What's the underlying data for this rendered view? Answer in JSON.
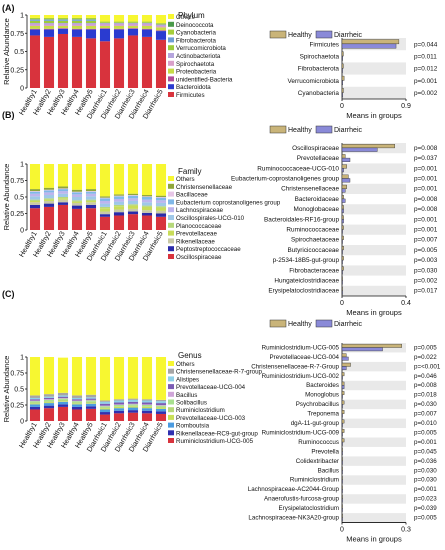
{
  "colors": {
    "Others": "#f7f731",
    "Deinococcota": "#4a9a4a",
    "Cyanobacteria": "#a6cf3c",
    "Fibrobacterota": "#6fa0d6",
    "Verrucomicrobiota": "#9ccc3c",
    "Actinobacteriota": "#b5a5dd",
    "Spirochaetota": "#d9a0c9",
    "Proteobacteria": "#c7dc48",
    "unidentified-Bacteria": "#b04e9a",
    "Bacteroidota": "#2a3bd0",
    "Firmicutes": "#d8333d",
    "Christensenellaceae": "#8fa63a",
    "Bacillaceae": "#e7c6e7",
    "Eubacterium coprostanoligenes group": "#80b8e8",
    "Lachnospiraceae": "#bdb5ee",
    "Oscillospirales-UCG-010": "#9fc8e8",
    "Planococcaceae": "#b6d87a",
    "Prevotellaceae": "#c9dc58",
    "Rikenellaceae": "#c9c9a6",
    "Peptostreptococcaceae": "#2a2aaa",
    "Oscillospiraceae": "#d8333d",
    "Christensenellaceae-R-7-group": "#a6a6a6",
    "Alistipes": "#8ed0e8",
    "Prevotellaceae-UCG-004": "#7b5cb4",
    "Bacillus": "#cfa5d8",
    "Solibacillus": "#a8e090",
    "Ruminiclostridium": "#b6d87a",
    "Prevotellaceae-UCG-003": "#c9e058",
    "Romboutsia": "#4b9be0",
    "Rikenellaceae-RC9-gut-group": "#3030b0",
    "Ruminiclostridium-UCG-005": "#d8333d",
    "healthy": "#c9b479",
    "diarrheic": "#8a8ad8"
  },
  "chart_data": [
    {
      "type": "bar",
      "panel": "(A)",
      "stacked": true,
      "legend_title": "Phylum",
      "ylabel": "Relative Abundance",
      "ylim": [
        0,
        1
      ],
      "yticks": [
        "0",
        "0.25",
        "0.5",
        "0.75",
        "1"
      ],
      "categories": [
        "Healthy1",
        "Healthy2",
        "Healthy3",
        "Healthy4",
        "Healthy5",
        "Diarrheic1",
        "Diarrheic2",
        "Diarrheic3",
        "Diarrheic4",
        "Diarrheic5"
      ],
      "series": [
        {
          "name": "Firmicutes",
          "values": [
            0.72,
            0.7,
            0.74,
            0.7,
            0.68,
            0.64,
            0.68,
            0.72,
            0.7,
            0.66
          ]
        },
        {
          "name": "Bacteroidota",
          "values": [
            0.08,
            0.1,
            0.07,
            0.1,
            0.12,
            0.17,
            0.12,
            0.09,
            0.1,
            0.12
          ]
        },
        {
          "name": "unidentified-Bacteria",
          "values": [
            0.01,
            0.01,
            0.01,
            0.01,
            0.01,
            0.01,
            0.01,
            0.01,
            0.01,
            0.01
          ]
        },
        {
          "name": "Proteobacteria",
          "values": [
            0.04,
            0.04,
            0.03,
            0.04,
            0.04,
            0.03,
            0.04,
            0.03,
            0.04,
            0.04
          ]
        },
        {
          "name": "Spirochaetota",
          "values": [
            0.02,
            0.02,
            0.02,
            0.02,
            0.02,
            0.02,
            0.02,
            0.02,
            0.02,
            0.02
          ]
        },
        {
          "name": "Actinobacteriota",
          "values": [
            0.02,
            0.02,
            0.02,
            0.02,
            0.02,
            0.02,
            0.02,
            0.02,
            0.02,
            0.02
          ]
        },
        {
          "name": "Verrucomicrobiota",
          "values": [
            0.03,
            0.03,
            0.03,
            0.03,
            0.03,
            0.01,
            0.01,
            0.01,
            0.01,
            0.01
          ]
        },
        {
          "name": "Fibrobacterota",
          "values": [
            0.02,
            0.02,
            0.02,
            0.02,
            0.02,
            0.0,
            0.0,
            0.0,
            0.0,
            0.0
          ]
        },
        {
          "name": "Cyanobacteria",
          "values": [
            0.02,
            0.02,
            0.02,
            0.02,
            0.02,
            0.01,
            0.01,
            0.01,
            0.01,
            0.01
          ]
        },
        {
          "name": "Deinococcota",
          "values": [
            0.0,
            0.0,
            0.0,
            0.0,
            0.0,
            0.0,
            0.0,
            0.0,
            0.0,
            0.0
          ]
        },
        {
          "name": "Others",
          "values": [
            0.04,
            0.04,
            0.04,
            0.04,
            0.04,
            0.09,
            0.09,
            0.09,
            0.09,
            0.11
          ]
        }
      ]
    },
    {
      "type": "bar",
      "panel": "(B)",
      "stacked": true,
      "legend_title": "Family",
      "ylabel": "Relative Abundance",
      "ylim": [
        0,
        1
      ],
      "yticks": [
        "0",
        "0.25",
        "0.5",
        "0.75",
        "1"
      ],
      "categories": [
        "Healthy1",
        "Healthy2",
        "Healthy3",
        "Healthy4",
        "Healthy5",
        "Diarrheic1",
        "Diarrheic2",
        "Diarrheic3",
        "Diarrheic4",
        "Diarrheic5"
      ],
      "series": [
        {
          "name": "Oscillospiraceae",
          "values": [
            0.33,
            0.35,
            0.38,
            0.32,
            0.33,
            0.2,
            0.22,
            0.24,
            0.22,
            0.2
          ]
        },
        {
          "name": "Peptostreptococcaceae",
          "values": [
            0.05,
            0.05,
            0.04,
            0.05,
            0.05,
            0.04,
            0.05,
            0.04,
            0.04,
            0.05
          ]
        },
        {
          "name": "Rikenellaceae",
          "values": [
            0.04,
            0.04,
            0.04,
            0.04,
            0.04,
            0.04,
            0.04,
            0.04,
            0.04,
            0.04
          ]
        },
        {
          "name": "Prevotellaceae",
          "values": [
            0.02,
            0.02,
            0.02,
            0.02,
            0.02,
            0.05,
            0.05,
            0.05,
            0.05,
            0.05
          ]
        },
        {
          "name": "Planococcaceae",
          "values": [
            0.02,
            0.02,
            0.02,
            0.02,
            0.02,
            0.02,
            0.02,
            0.02,
            0.02,
            0.02
          ]
        },
        {
          "name": "Oscillospirales-UCG-010",
          "values": [
            0.05,
            0.05,
            0.05,
            0.05,
            0.05,
            0.05,
            0.05,
            0.05,
            0.05,
            0.05
          ]
        },
        {
          "name": "Lachnospiraceae",
          "values": [
            0.04,
            0.04,
            0.04,
            0.04,
            0.04,
            0.04,
            0.04,
            0.04,
            0.04,
            0.04
          ]
        },
        {
          "name": "Eubacterium coprostanoligenes group",
          "values": [
            0.03,
            0.03,
            0.03,
            0.03,
            0.03,
            0.04,
            0.04,
            0.04,
            0.04,
            0.04
          ]
        },
        {
          "name": "Bacillaceae",
          "values": [
            0.01,
            0.01,
            0.01,
            0.01,
            0.01,
            0.01,
            0.01,
            0.01,
            0.01,
            0.01
          ]
        },
        {
          "name": "Christensenellaceae",
          "values": [
            0.03,
            0.03,
            0.03,
            0.03,
            0.03,
            0.02,
            0.02,
            0.02,
            0.02,
            0.02
          ]
        },
        {
          "name": "Others",
          "values": [
            0.38,
            0.36,
            0.34,
            0.39,
            0.38,
            0.49,
            0.46,
            0.45,
            0.47,
            0.48
          ]
        }
      ]
    },
    {
      "type": "bar",
      "panel": "(C)",
      "stacked": true,
      "legend_title": "Genus",
      "ylabel": "Relative Abundance",
      "ylim": [
        0,
        1
      ],
      "yticks": [
        "0",
        "0.25",
        "0.5",
        "0.75",
        "1"
      ],
      "categories": [
        "Healthy1",
        "Healthy2",
        "Healthy3",
        "Healthy4",
        "Healthy5",
        "Diarrheic1",
        "Diarrheic2",
        "Diarrheic3",
        "Diarrheic4",
        "Diarrheic5"
      ],
      "series": [
        {
          "name": "Ruminiclostridium-UCG-005",
          "values": [
            0.18,
            0.2,
            0.22,
            0.18,
            0.19,
            0.1,
            0.12,
            0.13,
            0.12,
            0.11
          ]
        },
        {
          "name": "Rikenellaceae-RC9-gut-group",
          "values": [
            0.04,
            0.04,
            0.04,
            0.04,
            0.04,
            0.04,
            0.04,
            0.04,
            0.04,
            0.04
          ]
        },
        {
          "name": "Romboutsia",
          "values": [
            0.04,
            0.04,
            0.04,
            0.04,
            0.04,
            0.04,
            0.04,
            0.04,
            0.04,
            0.04
          ]
        },
        {
          "name": "Prevotellaceae-UCG-003",
          "values": [
            0.01,
            0.01,
            0.01,
            0.01,
            0.01,
            0.02,
            0.02,
            0.02,
            0.02,
            0.02
          ]
        },
        {
          "name": "Ruminiclostridium",
          "values": [
            0.02,
            0.02,
            0.02,
            0.02,
            0.02,
            0.01,
            0.01,
            0.01,
            0.01,
            0.01
          ]
        },
        {
          "name": "Solibacillus",
          "values": [
            0.02,
            0.02,
            0.02,
            0.02,
            0.02,
            0.02,
            0.02,
            0.02,
            0.02,
            0.02
          ]
        },
        {
          "name": "Bacillus",
          "values": [
            0.01,
            0.01,
            0.01,
            0.01,
            0.01,
            0.01,
            0.01,
            0.01,
            0.01,
            0.01
          ]
        },
        {
          "name": "Prevotellaceae-UCG-004",
          "values": [
            0.02,
            0.02,
            0.02,
            0.02,
            0.02,
            0.03,
            0.03,
            0.03,
            0.03,
            0.03
          ]
        },
        {
          "name": "Alistipes",
          "values": [
            0.02,
            0.02,
            0.02,
            0.02,
            0.02,
            0.03,
            0.03,
            0.03,
            0.03,
            0.03
          ]
        },
        {
          "name": "Christensenellaceae-R-7-group",
          "values": [
            0.04,
            0.04,
            0.04,
            0.04,
            0.04,
            0.02,
            0.02,
            0.02,
            0.02,
            0.02
          ]
        },
        {
          "name": "Others",
          "values": [
            0.6,
            0.58,
            0.55,
            0.6,
            0.59,
            0.68,
            0.66,
            0.65,
            0.66,
            0.67
          ]
        }
      ]
    },
    {
      "type": "bar",
      "panel": "(A)",
      "orientation": "horizontal",
      "xlabel": "Means in groups",
      "xlim": [
        0,
        0.9
      ],
      "xticks": [
        "0",
        "0.9"
      ],
      "categories": [
        "Firmicutes",
        "Spirochaetota",
        "Fibrobacterota",
        "Verrucomicrobiota",
        "Cyanobacteria"
      ],
      "pvalues": [
        "p=0.044",
        "p=0.011",
        "p=0.012",
        "p=0.001",
        "p=0.002"
      ],
      "series": [
        {
          "name": "Healthy",
          "values": [
            0.8,
            0.02,
            0.02,
            0.03,
            0.02
          ]
        },
        {
          "name": "Diarrheic",
          "values": [
            0.76,
            0.01,
            0.0,
            0.01,
            0.01
          ]
        }
      ]
    },
    {
      "type": "bar",
      "panel": "(B)",
      "orientation": "horizontal",
      "xlabel": "Means in groups",
      "xlim": [
        0,
        0.4
      ],
      "xticks": [
        "0",
        "0.4"
      ],
      "categories": [
        "Oscillospiraceae",
        "Prevotellaceae",
        "Ruminococcaceae-UCG-010",
        "Eubacterium-coprostanoligenes group",
        "Christensenellaceae",
        "Bacteroidaceae",
        "Monoglobaceae",
        "Bacteroidales-RF16-group",
        "Ruminococcaceae",
        "Spirochaetaceae",
        "Butyricicoccaceae",
        "p-2534-18B5-gut-group",
        "Fibrobacteraceae",
        "Hungateiclostridiaceae",
        "Erysipelatoclostridiaceae"
      ],
      "pvalues": [
        "p=0.008",
        "p=0.037",
        "p=0.001",
        "p=0.001",
        "p=0.001",
        "p=0.008",
        "p=0.008",
        "p=0.001",
        "p=0.001",
        "p=0.007",
        "p=0.005",
        "p=0.003",
        "p=0.030",
        "p=0.002",
        "p=0.017"
      ],
      "series": [
        {
          "name": "Healthy",
          "values": [
            0.33,
            0.02,
            0.03,
            0.04,
            0.03,
            0.01,
            0.01,
            0.01,
            0.01,
            0.01,
            0.01,
            0.01,
            0.01,
            0.0,
            0.0
          ]
        },
        {
          "name": "Diarrheic",
          "values": [
            0.22,
            0.05,
            0.01,
            0.05,
            0.02,
            0.02,
            0.01,
            0.01,
            0.0,
            0.0,
            0.0,
            0.0,
            0.0,
            0.0,
            0.0
          ]
        }
      ]
    },
    {
      "type": "bar",
      "panel": "(C)",
      "orientation": "horizontal",
      "xlabel": "Means in groups",
      "xlim": [
        0,
        0.3
      ],
      "xticks": [
        "0",
        "0.3"
      ],
      "categories": [
        "Ruminiclostridium-UCG-005",
        "Prevotellaceae-UCG-004",
        "Christensenellaceae-R-7-Group",
        "Ruminiclostridium-UCG-002",
        "Bacteroides",
        "Monoglobus",
        "Psychrobacillus",
        "Treponema",
        "dgA-11-gut-group",
        "Ruminiclostridium-UCG-009",
        "Ruminococcus",
        "Prevotella",
        "Colidextribacter",
        "Bacillus",
        "Ruminiclostridium",
        "Lachnospiraceae-AC2044-Group",
        "Anaerofustis-furcosa-group",
        "Erysipelatoclostridium",
        "Lachnospiraceae-NK3A20-group"
      ],
      "pvalues": [
        "p=0.005",
        "p=0.022",
        "p=<0.001",
        "p=0.046",
        "p=0.008",
        "p=0.018",
        "p=0.030",
        "p=0.007",
        "p=0.010",
        "p=0.005",
        "p=0.001",
        "p=0.045",
        "p=0.036",
        "p=0.030",
        "p=0.030",
        "p=0.001",
        "p=0.023",
        "p=0.039",
        "p=0.005"
      ],
      "series": [
        {
          "name": "Healthy",
          "values": [
            0.28,
            0.02,
            0.04,
            0.01,
            0.01,
            0.01,
            0.01,
            0.01,
            0.01,
            0.01,
            0.01,
            0.0,
            0.0,
            0.0,
            0.0,
            0.0,
            0.0,
            0.0,
            0.0
          ]
        },
        {
          "name": "Diarrheic",
          "values": [
            0.19,
            0.03,
            0.02,
            0.0,
            0.01,
            0.0,
            0.0,
            0.0,
            0.0,
            0.0,
            0.0,
            0.0,
            0.0,
            0.0,
            0.0,
            0.0,
            0.0,
            0.0,
            0.0
          ]
        }
      ]
    }
  ]
}
